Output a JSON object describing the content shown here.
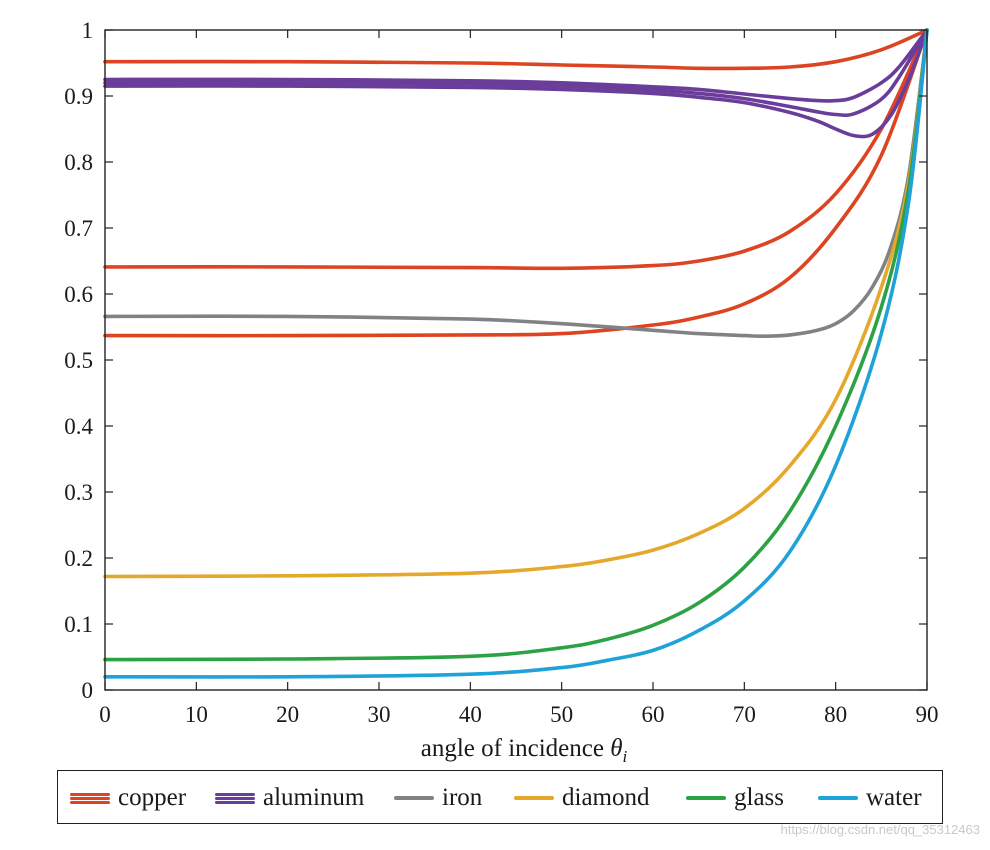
{
  "chart_data": {
    "type": "line",
    "title": "",
    "xlabel": "angle of incidence",
    "xlabel_symbol": "θ",
    "xlabel_subscript": "i",
    "ylabel": "",
    "xlim": [
      0,
      90
    ],
    "ylim": [
      0,
      1
    ],
    "xticks": [
      0,
      10,
      20,
      30,
      40,
      50,
      60,
      70,
      80,
      90
    ],
    "yticks": [
      0,
      0.1,
      0.2,
      0.3,
      0.4,
      0.5,
      0.6,
      0.7,
      0.8,
      0.9,
      1
    ],
    "ytick_labels": [
      "0",
      "0.1",
      "0.2",
      "0.3",
      "0.4",
      "0.5",
      "0.6",
      "0.7",
      "0.8",
      "0.9",
      "1"
    ],
    "grid": false,
    "legend_position": "bottom",
    "legend": [
      {
        "name": "copper",
        "color": "#dd4422",
        "lines": 3
      },
      {
        "name": "aluminum",
        "color": "#6a3d9a",
        "lines": 3
      },
      {
        "name": "iron",
        "color": "#808285",
        "lines": 1
      },
      {
        "name": "diamond",
        "color": "#e6a82c",
        "lines": 1
      },
      {
        "name": "glass",
        "color": "#2ca244",
        "lines": 1
      },
      {
        "name": "water",
        "color": "#1fa2d8",
        "lines": 1
      }
    ],
    "series": [
      {
        "name": "copper",
        "color": "#dd4422",
        "x": [
          0,
          20,
          40,
          50,
          60,
          65,
          70,
          75,
          80,
          85,
          90
        ],
        "values": [
          0.952,
          0.952,
          0.95,
          0.947,
          0.944,
          0.942,
          0.942,
          0.944,
          0.952,
          0.97,
          1.0
        ]
      },
      {
        "name": "copper",
        "color": "#dd4422",
        "x": [
          0,
          20,
          40,
          50,
          60,
          65,
          70,
          75,
          80,
          85,
          90
        ],
        "values": [
          0.641,
          0.641,
          0.64,
          0.639,
          0.643,
          0.65,
          0.665,
          0.695,
          0.752,
          0.85,
          1.0
        ]
      },
      {
        "name": "copper",
        "color": "#dd4422",
        "x": [
          0,
          20,
          40,
          50,
          60,
          65,
          70,
          75,
          80,
          85,
          90
        ],
        "values": [
          0.537,
          0.537,
          0.538,
          0.54,
          0.553,
          0.565,
          0.585,
          0.625,
          0.7,
          0.81,
          1.0
        ]
      },
      {
        "name": "aluminum",
        "color": "#6a3d9a",
        "x": [
          0,
          20,
          40,
          50,
          60,
          65,
          70,
          75,
          78,
          80,
          82,
          85,
          87,
          90
        ],
        "values": [
          0.925,
          0.925,
          0.923,
          0.92,
          0.914,
          0.91,
          0.903,
          0.896,
          0.893,
          0.893,
          0.898,
          0.92,
          0.945,
          1.0
        ]
      },
      {
        "name": "aluminum",
        "color": "#6a3d9a",
        "x": [
          0,
          20,
          40,
          50,
          60,
          65,
          70,
          75,
          78,
          80,
          82,
          85,
          87,
          90
        ],
        "values": [
          0.92,
          0.92,
          0.918,
          0.915,
          0.909,
          0.904,
          0.896,
          0.884,
          0.876,
          0.872,
          0.873,
          0.895,
          0.93,
          1.0
        ]
      },
      {
        "name": "aluminum",
        "color": "#6a3d9a",
        "x": [
          0,
          20,
          40,
          50,
          60,
          65,
          70,
          75,
          78,
          80,
          82,
          84,
          86,
          88,
          90
        ],
        "values": [
          0.915,
          0.915,
          0.913,
          0.91,
          0.904,
          0.898,
          0.89,
          0.875,
          0.862,
          0.85,
          0.84,
          0.842,
          0.87,
          0.925,
          1.0
        ]
      },
      {
        "name": "iron",
        "color": "#808285",
        "x": [
          0,
          20,
          40,
          50,
          60,
          65,
          70,
          72,
          75,
          78,
          80,
          82,
          84,
          86,
          88,
          90
        ],
        "values": [
          0.566,
          0.566,
          0.562,
          0.555,
          0.545,
          0.54,
          0.537,
          0.536,
          0.538,
          0.545,
          0.555,
          0.575,
          0.61,
          0.67,
          0.78,
          1.0
        ]
      },
      {
        "name": "diamond",
        "color": "#e6a82c",
        "x": [
          0,
          20,
          40,
          50,
          55,
          60,
          65,
          70,
          75,
          80,
          85,
          88,
          90
        ],
        "values": [
          0.172,
          0.173,
          0.177,
          0.187,
          0.197,
          0.212,
          0.237,
          0.275,
          0.34,
          0.44,
          0.61,
          0.77,
          1.0
        ]
      },
      {
        "name": "glass",
        "color": "#2ca244",
        "x": [
          0,
          20,
          40,
          50,
          55,
          60,
          65,
          70,
          75,
          80,
          85,
          88,
          90
        ],
        "values": [
          0.046,
          0.047,
          0.051,
          0.064,
          0.077,
          0.098,
          0.132,
          0.186,
          0.271,
          0.4,
          0.58,
          0.76,
          1.0
        ]
      },
      {
        "name": "water",
        "color": "#1fa2d8",
        "x": [
          0,
          20,
          40,
          50,
          55,
          60,
          65,
          70,
          75,
          80,
          85,
          88,
          90
        ],
        "values": [
          0.02,
          0.02,
          0.024,
          0.034,
          0.045,
          0.06,
          0.09,
          0.135,
          0.21,
          0.34,
          0.54,
          0.74,
          1.0
        ]
      }
    ]
  },
  "watermark": "https://blog.csdn.net/qq_35312463"
}
